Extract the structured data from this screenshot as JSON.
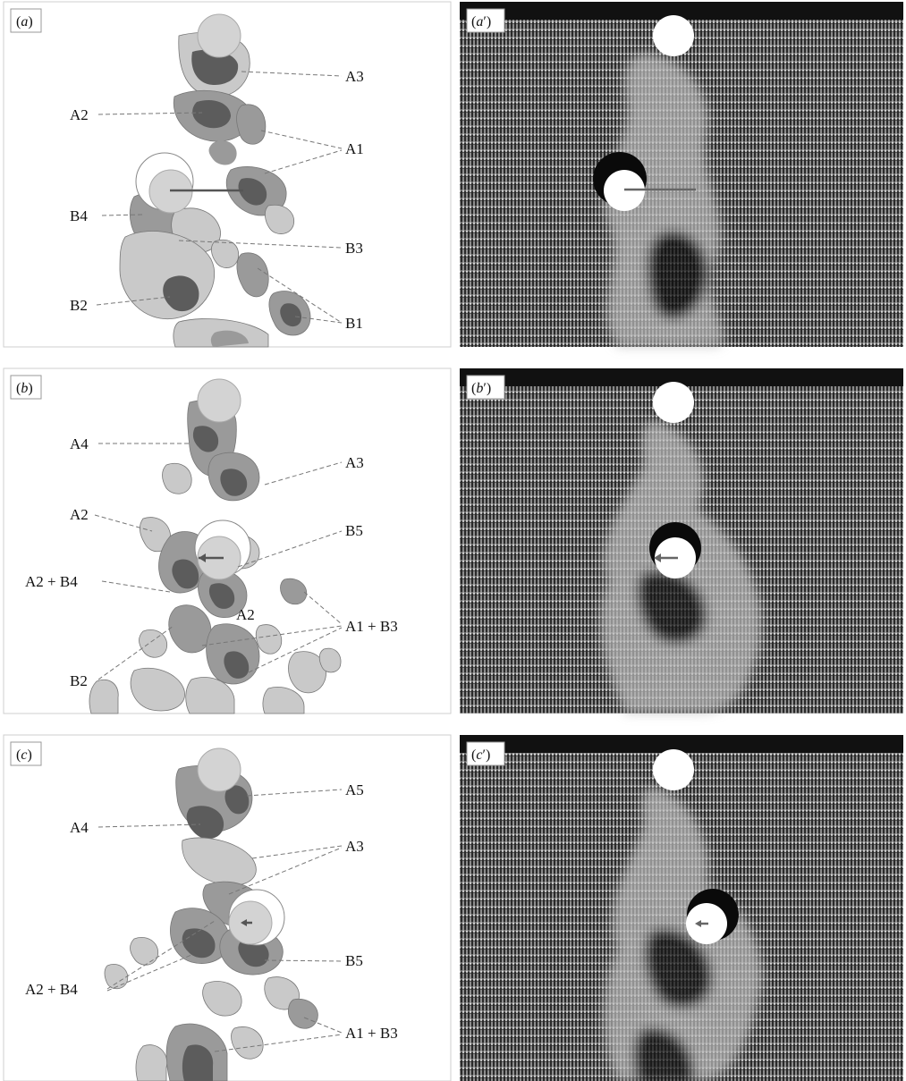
{
  "figure": {
    "panels": [
      {
        "id": "a",
        "label_letter": "a",
        "callouts": [
          "A3",
          "A2",
          "A1",
          "B4",
          "B3",
          "B2",
          "B1"
        ]
      },
      {
        "id": "b",
        "label_letter": "b",
        "callouts": [
          "A4",
          "A3",
          "A2",
          "B5",
          "A2 + B4",
          "A2",
          "A1 + B3",
          "B2"
        ]
      },
      {
        "id": "c",
        "label_letter": "c",
        "callouts": [
          "A5",
          "A4",
          "A3",
          "B5",
          "A2 + B4",
          "A1 + B3"
        ]
      }
    ],
    "vector_panels": [
      {
        "id": "a_prime",
        "label_letter": "a",
        "prime": "′"
      },
      {
        "id": "b_prime",
        "label_letter": "b",
        "prime": "′"
      },
      {
        "id": "c_prime",
        "label_letter": "c",
        "prime": "′"
      }
    ]
  },
  "colors": {
    "contour_light": "#c9c9c9",
    "contour_mid": "#9a9a9a",
    "contour_dark": "#5c5c5c",
    "cylinder_fill": "#d3d3d3",
    "vector_bg": "#2a2a2a",
    "vector_arrow": "#dcdcdc",
    "leader_line": "#777777"
  }
}
